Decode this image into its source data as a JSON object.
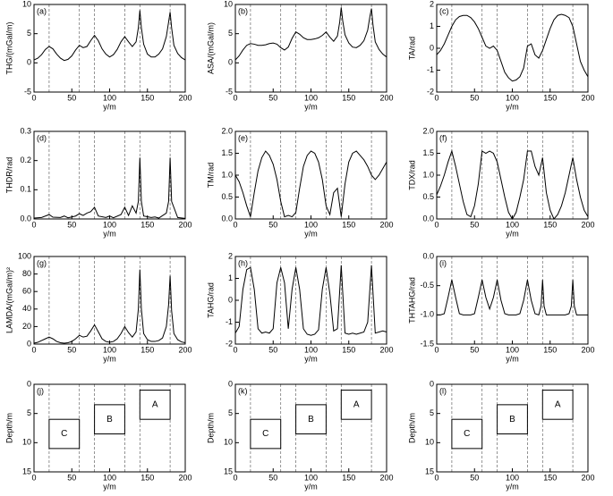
{
  "chart_data": [
    {
      "type": "line",
      "panel_label": "(a)",
      "ylabel": "THG/(mGal/m)",
      "xlabel": "y/m",
      "x": [
        0,
        5,
        10,
        15,
        20,
        25,
        30,
        35,
        40,
        45,
        50,
        55,
        60,
        65,
        70,
        75,
        80,
        85,
        90,
        95,
        100,
        105,
        110,
        115,
        120,
        125,
        130,
        135,
        138,
        140,
        142,
        145,
        150,
        155,
        160,
        165,
        170,
        175,
        178,
        180,
        182,
        185,
        190,
        195,
        200
      ],
      "values": [
        0.5,
        0.8,
        1.4,
        2.3,
        2.8,
        2.4,
        1.5,
        0.8,
        0.4,
        0.6,
        1.2,
        2.2,
        3.0,
        2.6,
        2.8,
        3.8,
        4.7,
        3.8,
        2.4,
        1.5,
        1.0,
        1.4,
        2.3,
        3.6,
        4.5,
        3.6,
        2.8,
        3.6,
        6.0,
        9.0,
        6.0,
        3.2,
        1.5,
        1.0,
        1.0,
        1.5,
        2.4,
        4.5,
        7.0,
        8.7,
        6.0,
        3.0,
        1.6,
        0.9,
        0.5
      ],
      "xlim": [
        0,
        200
      ],
      "xticks": [
        0,
        50,
        100,
        150,
        200
      ],
      "ylim": [
        -5,
        10
      ],
      "yticks": [
        -5,
        0,
        5,
        10
      ],
      "vlines": [
        20,
        60,
        80,
        120,
        140,
        180
      ],
      "color": "#000000"
    },
    {
      "type": "line",
      "panel_label": "(b)",
      "ylabel": "ASA/(mGal/m)",
      "xlabel": "y/m",
      "x": [
        0,
        5,
        10,
        15,
        20,
        25,
        30,
        35,
        40,
        45,
        50,
        55,
        60,
        65,
        70,
        75,
        80,
        85,
        90,
        95,
        100,
        105,
        110,
        115,
        120,
        125,
        130,
        135,
        138,
        140,
        142,
        145,
        150,
        155,
        160,
        165,
        170,
        175,
        178,
        180,
        182,
        185,
        190,
        195,
        200
      ],
      "values": [
        0.5,
        1.2,
        2.2,
        3.0,
        3.3,
        3.2,
        3.0,
        3.0,
        3.1,
        3.3,
        3.4,
        3.2,
        2.6,
        2.2,
        2.7,
        4.2,
        5.3,
        4.9,
        4.3,
        4.0,
        4.0,
        4.1,
        4.3,
        4.7,
        5.3,
        4.4,
        3.7,
        4.6,
        7.0,
        9.5,
        7.2,
        4.8,
        3.4,
        2.7,
        2.6,
        3.0,
        3.8,
        5.6,
        8.0,
        9.3,
        6.5,
        3.6,
        2.3,
        1.5,
        1.0
      ],
      "xlim": [
        0,
        200
      ],
      "xticks": [
        0,
        50,
        100,
        150,
        200
      ],
      "ylim": [
        -5,
        10
      ],
      "yticks": [
        -5,
        0,
        5,
        10
      ],
      "vlines": [
        20,
        60,
        80,
        120,
        140,
        180
      ],
      "color": "#000000"
    },
    {
      "type": "line",
      "panel_label": "(c)",
      "ylabel": "TA/rad",
      "xlabel": "y/m",
      "x": [
        0,
        5,
        10,
        15,
        20,
        25,
        30,
        35,
        40,
        45,
        50,
        55,
        60,
        65,
        70,
        75,
        80,
        85,
        90,
        95,
        100,
        105,
        110,
        115,
        120,
        125,
        130,
        135,
        140,
        145,
        150,
        155,
        160,
        165,
        170,
        175,
        180,
        185,
        190,
        195,
        200
      ],
      "values": [
        -0.3,
        -0.1,
        0.2,
        0.6,
        1.0,
        1.3,
        1.45,
        1.5,
        1.5,
        1.4,
        1.2,
        0.9,
        0.5,
        0.1,
        0.0,
        0.1,
        -0.1,
        -0.6,
        -1.1,
        -1.35,
        -1.5,
        -1.45,
        -1.3,
        -0.9,
        0.1,
        0.2,
        -0.3,
        -0.45,
        -0.1,
        0.4,
        0.9,
        1.3,
        1.5,
        1.55,
        1.5,
        1.4,
        1.0,
        0.2,
        -0.6,
        -1.0,
        -1.3
      ],
      "xlim": [
        0,
        200
      ],
      "xticks": [
        0,
        50,
        100,
        150,
        200
      ],
      "ylim": [
        -2,
        2
      ],
      "yticks": [
        -2,
        -1,
        0,
        1,
        2
      ],
      "vlines": [
        20,
        60,
        80,
        120,
        140,
        180
      ],
      "color": "#000000"
    },
    {
      "type": "line",
      "panel_label": "(d)",
      "ylabel": "THDR/rad",
      "xlabel": "y/m",
      "x": [
        0,
        10,
        15,
        20,
        25,
        35,
        40,
        45,
        55,
        60,
        65,
        70,
        75,
        80,
        85,
        95,
        100,
        105,
        115,
        120,
        125,
        130,
        135,
        138,
        140,
        142,
        145,
        155,
        160,
        165,
        175,
        178,
        180,
        182,
        190,
        200
      ],
      "values": [
        0.003,
        0.005,
        0.01,
        0.015,
        0.006,
        0.005,
        0.01,
        0.004,
        0.01,
        0.018,
        0.012,
        0.02,
        0.025,
        0.04,
        0.01,
        0.005,
        0.01,
        0.004,
        0.015,
        0.04,
        0.012,
        0.045,
        0.02,
        0.06,
        0.21,
        0.06,
        0.01,
        0.005,
        0.007,
        0.003,
        0.02,
        0.06,
        0.21,
        0.06,
        0.005,
        0.002
      ],
      "xlim": [
        0,
        200
      ],
      "xticks": [
        0,
        50,
        100,
        150,
        200
      ],
      "ylim": [
        0,
        0.3
      ],
      "yticks": [
        {
          "value": 0,
          "label": "0.0"
        },
        0.1,
        0.2,
        0.3
      ],
      "vlines": [
        20,
        60,
        80,
        120,
        140,
        180
      ],
      "color": "#000000"
    },
    {
      "type": "line",
      "panel_label": "(e)",
      "ylabel": "TM/rad",
      "xlabel": "y/m",
      "x": [
        0,
        5,
        10,
        15,
        20,
        25,
        30,
        35,
        40,
        45,
        50,
        55,
        60,
        65,
        70,
        75,
        80,
        85,
        90,
        95,
        100,
        105,
        110,
        115,
        120,
        125,
        130,
        135,
        140,
        145,
        150,
        155,
        160,
        165,
        170,
        175,
        180,
        185,
        190,
        195,
        200
      ],
      "values": [
        1.0,
        0.85,
        0.6,
        0.3,
        0.05,
        0.6,
        1.1,
        1.4,
        1.55,
        1.45,
        1.25,
        0.9,
        0.4,
        0.05,
        0.08,
        0.05,
        0.15,
        0.7,
        1.2,
        1.45,
        1.55,
        1.5,
        1.3,
        0.9,
        0.3,
        0.1,
        0.6,
        0.7,
        0.05,
        0.8,
        1.3,
        1.5,
        1.55,
        1.45,
        1.35,
        1.2,
        1.0,
        0.9,
        1.0,
        1.15,
        1.3
      ],
      "xlim": [
        0,
        200
      ],
      "xticks": [
        0,
        50,
        100,
        150,
        200
      ],
      "ylim": [
        0,
        2
      ],
      "yticks": [
        {
          "value": 0,
          "label": "0.0"
        },
        0.5,
        {
          "value": 1,
          "label": "1.0"
        },
        1.5,
        {
          "value": 2,
          "label": "2.0"
        }
      ],
      "vlines": [
        20,
        60,
        80,
        120,
        140,
        180
      ],
      "color": "#000000"
    },
    {
      "type": "line",
      "panel_label": "(f)",
      "ylabel": "TDX/rad",
      "xlabel": "y/m",
      "x": [
        0,
        5,
        10,
        15,
        20,
        25,
        30,
        35,
        40,
        45,
        50,
        55,
        60,
        65,
        70,
        75,
        80,
        85,
        90,
        95,
        100,
        105,
        110,
        115,
        120,
        125,
        130,
        135,
        140,
        145,
        150,
        155,
        160,
        165,
        170,
        175,
        180,
        185,
        190,
        195,
        200
      ],
      "values": [
        0.55,
        0.75,
        1.0,
        1.3,
        1.55,
        1.2,
        0.8,
        0.4,
        0.1,
        0.05,
        0.3,
        0.8,
        1.55,
        1.5,
        1.55,
        1.5,
        1.3,
        0.9,
        0.5,
        0.15,
        0.0,
        0.15,
        0.5,
        0.9,
        1.55,
        1.55,
        1.2,
        1.0,
        1.4,
        0.6,
        0.2,
        0.0,
        0.1,
        0.3,
        0.6,
        1.0,
        1.4,
        0.9,
        0.5,
        0.2,
        0.05
      ],
      "xlim": [
        0,
        200
      ],
      "xticks": [
        0,
        50,
        100,
        150,
        200
      ],
      "ylim": [
        0,
        2
      ],
      "yticks": [
        {
          "value": 0,
          "label": "0.0"
        },
        0.5,
        {
          "value": 1,
          "label": "1.0"
        },
        1.5,
        {
          "value": 2,
          "label": "2.0"
        }
      ],
      "vlines": [
        20,
        60,
        80,
        120,
        140,
        180
      ],
      "color": "#000000"
    },
    {
      "type": "line",
      "panel_label": "(g)",
      "ylabel": "LAMDA/(mGal/m)²",
      "xlabel": "y/m",
      "x": [
        0,
        5,
        10,
        15,
        20,
        25,
        30,
        35,
        40,
        45,
        50,
        55,
        60,
        65,
        70,
        75,
        80,
        85,
        90,
        95,
        100,
        105,
        110,
        115,
        120,
        125,
        130,
        135,
        138,
        140,
        142,
        145,
        150,
        155,
        160,
        165,
        170,
        175,
        178,
        180,
        182,
        185,
        190,
        195,
        200
      ],
      "values": [
        1,
        2,
        4,
        6,
        8,
        6,
        3,
        1.5,
        1,
        1.5,
        3,
        6,
        10,
        8,
        9,
        15,
        22,
        14,
        6,
        3,
        2,
        3,
        6,
        12,
        20,
        13,
        8,
        14,
        40,
        85,
        40,
        12,
        5,
        3,
        3,
        4,
        7,
        20,
        45,
        78,
        38,
        12,
        5,
        2.5,
        1.5
      ],
      "xlim": [
        0,
        200
      ],
      "xticks": [
        0,
        50,
        100,
        150,
        200
      ],
      "ylim": [
        0,
        100
      ],
      "yticks": [
        0,
        20,
        40,
        60,
        80,
        100
      ],
      "vlines": [
        20,
        60,
        80,
        120,
        140,
        180
      ],
      "color": "#000000"
    },
    {
      "type": "line",
      "panel_label": "(h)",
      "ylabel": "TAHG/rad",
      "xlabel": "y/m",
      "x": [
        0,
        5,
        10,
        15,
        20,
        25,
        30,
        35,
        40,
        45,
        50,
        55,
        60,
        65,
        70,
        75,
        80,
        85,
        90,
        95,
        100,
        105,
        110,
        115,
        120,
        125,
        130,
        135,
        140,
        145,
        150,
        155,
        160,
        165,
        170,
        175,
        180,
        185,
        190,
        195,
        200
      ],
      "values": [
        -1.5,
        -1.2,
        0.5,
        1.4,
        1.5,
        0.5,
        -1.3,
        -1.5,
        -1.45,
        -1.5,
        -1.3,
        0.8,
        1.5,
        0.8,
        -1.3,
        0.5,
        1.5,
        0.5,
        -1.3,
        -1.55,
        -1.6,
        -1.55,
        -1.35,
        0.5,
        1.5,
        0.3,
        -1.4,
        -1.3,
        1.6,
        -1.5,
        -1.55,
        -1.5,
        -1.55,
        -1.5,
        -1.45,
        -1.0,
        1.6,
        -1.5,
        -1.45,
        -1.4,
        -1.45
      ],
      "xlim": [
        0,
        200
      ],
      "xticks": [
        0,
        50,
        100,
        150,
        200
      ],
      "ylim": [
        -2,
        2
      ],
      "yticks": [
        -2,
        -1,
        0,
        1,
        2
      ],
      "vlines": [
        20,
        60,
        80,
        120,
        140,
        180
      ],
      "color": "#000000"
    },
    {
      "type": "line",
      "panel_label": "(i)",
      "ylabel": "THTAHG/rad",
      "xlabel": "y/m",
      "x": [
        0,
        5,
        10,
        15,
        20,
        25,
        30,
        35,
        40,
        45,
        50,
        55,
        60,
        65,
        70,
        75,
        80,
        85,
        90,
        95,
        100,
        105,
        110,
        115,
        120,
        125,
        130,
        135,
        138,
        140,
        142,
        145,
        150,
        155,
        160,
        165,
        170,
        175,
        178,
        180,
        182,
        185,
        190,
        195,
        200
      ],
      "values": [
        -1.0,
        -1.0,
        -0.98,
        -0.7,
        -0.4,
        -0.7,
        -0.98,
        -1.0,
        -1.0,
        -1.0,
        -0.98,
        -0.7,
        -0.4,
        -0.7,
        -0.9,
        -0.7,
        -0.4,
        -0.75,
        -0.98,
        -1.0,
        -1.0,
        -1.0,
        -0.98,
        -0.75,
        -0.4,
        -0.75,
        -0.98,
        -1.0,
        -0.85,
        -0.4,
        -0.85,
        -1.0,
        -1.0,
        -1.0,
        -1.0,
        -1.0,
        -1.0,
        -0.98,
        -0.85,
        -0.4,
        -0.85,
        -1.0,
        -1.0,
        -1.0,
        -1.0
      ],
      "xlim": [
        0,
        200
      ],
      "xticks": [
        0,
        50,
        100,
        150,
        200
      ],
      "ylim": [
        -1.5,
        0
      ],
      "yticks": [
        -1.5,
        {
          "value": -1,
          "label": "-1.0"
        },
        -0.5,
        {
          "value": 0,
          "label": "0.0"
        }
      ],
      "vlines": [
        20,
        60,
        80,
        120,
        140,
        180
      ],
      "color": "#000000"
    },
    {
      "type": "model",
      "panel_label": "(j)",
      "ylabel": "Depth/m",
      "xlabel": "y/m",
      "bodies": [
        {
          "label": "C",
          "x": [
            20,
            60
          ],
          "depth": [
            6,
            11
          ]
        },
        {
          "label": "B",
          "x": [
            80,
            120
          ],
          "depth": [
            3.5,
            8.5
          ]
        },
        {
          "label": "A",
          "x": [
            140,
            180
          ],
          "depth": [
            1,
            6
          ]
        }
      ],
      "xlim": [
        0,
        200
      ],
      "xticks": [
        0,
        50,
        100,
        150,
        200
      ],
      "ylim": [
        0,
        15
      ],
      "yticks": [
        0,
        5,
        10,
        15
      ],
      "y_inverted": true,
      "vlines": [
        20,
        60,
        80,
        120,
        140,
        180
      ]
    },
    {
      "type": "model",
      "panel_label": "(k)",
      "ylabel": "Depth/m",
      "xlabel": "y/m",
      "bodies": [
        {
          "label": "C",
          "x": [
            20,
            60
          ],
          "depth": [
            6,
            11
          ]
        },
        {
          "label": "B",
          "x": [
            80,
            120
          ],
          "depth": [
            3.5,
            8.5
          ]
        },
        {
          "label": "A",
          "x": [
            140,
            180
          ],
          "depth": [
            1,
            6
          ]
        }
      ],
      "xlim": [
        0,
        200
      ],
      "xticks": [
        0,
        50,
        100,
        150,
        200
      ],
      "ylim": [
        0,
        15
      ],
      "yticks": [
        0,
        5,
        10,
        15
      ],
      "y_inverted": true,
      "vlines": [
        20,
        60,
        80,
        120,
        140,
        180
      ]
    },
    {
      "type": "model",
      "panel_label": "(l)",
      "ylabel": "Depth/m",
      "xlabel": "y/m",
      "bodies": [
        {
          "label": "C",
          "x": [
            20,
            60
          ],
          "depth": [
            6,
            11
          ]
        },
        {
          "label": "B",
          "x": [
            80,
            120
          ],
          "depth": [
            3.5,
            8.5
          ]
        },
        {
          "label": "A",
          "x": [
            140,
            180
          ],
          "depth": [
            1,
            6
          ]
        }
      ],
      "xlim": [
        0,
        200
      ],
      "xticks": [
        0,
        50,
        100,
        150,
        200
      ],
      "ylim": [
        0,
        15
      ],
      "yticks": [
        0,
        5,
        10,
        15
      ],
      "y_inverted": true,
      "vlines": [
        20,
        60,
        80,
        120,
        140,
        180
      ]
    }
  ]
}
